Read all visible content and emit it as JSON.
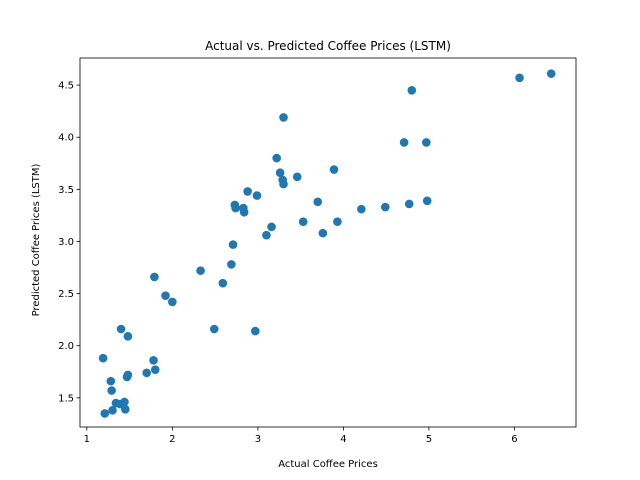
{
  "chart_data": {
    "type": "scatter",
    "title": "Actual vs. Predicted Coffee Prices (LSTM)",
    "xlabel": "Actual Coffee Prices",
    "ylabel": "Predicted Coffee Prices (LSTM)",
    "xlim": [
      0.92,
      6.72
    ],
    "ylim": [
      1.22,
      4.76
    ],
    "xticks": [
      1,
      2,
      3,
      4,
      5,
      6
    ],
    "yticks": [
      1.5,
      2.0,
      2.5,
      3.0,
      3.5,
      4.0,
      4.5
    ],
    "xtick_labels": [
      "1",
      "2",
      "3",
      "4",
      "5",
      "6"
    ],
    "ytick_labels": [
      "1.5",
      "2.0",
      "2.5",
      "3.0",
      "3.5",
      "4.0",
      "4.5"
    ],
    "grid": false,
    "marker_color": "#1f77b4",
    "points": [
      [
        1.19,
        1.88
      ],
      [
        1.21,
        1.35
      ],
      [
        1.28,
        1.66
      ],
      [
        1.29,
        1.57
      ],
      [
        1.3,
        1.38
      ],
      [
        1.34,
        1.45
      ],
      [
        1.39,
        1.44
      ],
      [
        1.4,
        2.16
      ],
      [
        1.44,
        1.46
      ],
      [
        1.45,
        1.39
      ],
      [
        1.47,
        1.7
      ],
      [
        1.48,
        1.72
      ],
      [
        1.48,
        2.09
      ],
      [
        1.7,
        1.74
      ],
      [
        1.78,
        1.86
      ],
      [
        1.79,
        2.66
      ],
      [
        1.8,
        1.77
      ],
      [
        1.92,
        2.48
      ],
      [
        2.0,
        2.42
      ],
      [
        2.33,
        2.72
      ],
      [
        2.49,
        2.16
      ],
      [
        2.59,
        2.6
      ],
      [
        2.69,
        2.78
      ],
      [
        2.71,
        2.97
      ],
      [
        2.73,
        3.35
      ],
      [
        2.74,
        3.32
      ],
      [
        2.83,
        3.32
      ],
      [
        2.84,
        3.28
      ],
      [
        2.88,
        3.48
      ],
      [
        2.97,
        2.14
      ],
      [
        2.99,
        3.44
      ],
      [
        3.1,
        3.06
      ],
      [
        3.16,
        3.14
      ],
      [
        3.22,
        3.8
      ],
      [
        3.26,
        3.66
      ],
      [
        3.29,
        3.59
      ],
      [
        3.3,
        3.55
      ],
      [
        3.3,
        4.19
      ],
      [
        3.46,
        3.62
      ],
      [
        3.53,
        3.19
      ],
      [
        3.7,
        3.38
      ],
      [
        3.76,
        3.08
      ],
      [
        3.89,
        3.69
      ],
      [
        3.93,
        3.19
      ],
      [
        4.21,
        3.31
      ],
      [
        4.49,
        3.33
      ],
      [
        4.71,
        3.95
      ],
      [
        4.77,
        3.36
      ],
      [
        4.8,
        4.45
      ],
      [
        4.97,
        3.95
      ],
      [
        4.98,
        3.39
      ],
      [
        6.06,
        4.57
      ],
      [
        6.43,
        4.61
      ]
    ]
  }
}
